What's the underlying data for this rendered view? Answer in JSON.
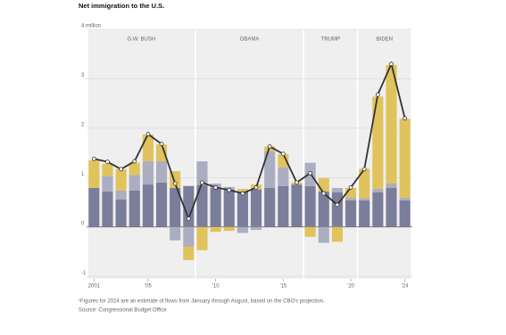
{
  "chart_data": {
    "type": "stacked-bar-line",
    "title": "Net immigration to the U.S.",
    "notes": [
      "¹Figures for 2024 are an estimate of flows from January through August, based on the CBO's projection.",
      "Source: Congressional Budget Office"
    ],
    "x": [
      2001,
      2002,
      2003,
      2004,
      2005,
      2006,
      2007,
      2008,
      2009,
      2010,
      2011,
      2012,
      2013,
      2014,
      2015,
      2016,
      2017,
      2018,
      2019,
      2020,
      2021,
      2022,
      2023,
      2024
    ],
    "xlim": [
      2000.45,
      2024.55
    ],
    "xticks": [
      {
        "value": 2001,
        "label": "2001"
      },
      {
        "value": 2005,
        "label": "'05"
      },
      {
        "value": 2010,
        "label": "'10"
      },
      {
        "value": 2015,
        "label": "'15"
      },
      {
        "value": 2020,
        "label": "'20"
      },
      {
        "value": 2024,
        "label": "'24"
      }
    ],
    "ylim": [
      -1.05,
      4
    ],
    "yticks": [
      {
        "value": 4,
        "label": "4 million"
      },
      3,
      2,
      1,
      0,
      -1
    ],
    "grid": true,
    "eras": [
      {
        "name": "G.W. BUSH",
        "start": 2001,
        "end": 2008
      },
      {
        "name": "OBAMA",
        "start": 2009,
        "end": 2016
      },
      {
        "name": "TRUMP",
        "start": 2017,
        "end": 2020
      },
      {
        "name": "BIDEN",
        "start": 2021,
        "end": 2024
      }
    ],
    "series": [
      {
        "color": "#7b7e9a",
        "values": [
          0.79,
          0.72,
          0.56,
          0.74,
          0.86,
          0.9,
          0.79,
          0.83,
          0.85,
          0.79,
          0.76,
          0.72,
          0.76,
          0.79,
          0.83,
          0.86,
          0.83,
          0.72,
          0.7,
          0.54,
          0.54,
          0.7,
          0.79,
          0.54
        ]
      },
      {
        "color": "#abadc0",
        "values": [
          0,
          0.31,
          0.18,
          0.31,
          0.47,
          0.43,
          -0.27,
          -0.4,
          0.48,
          0.09,
          0.05,
          -0.12,
          -0.06,
          0.74,
          0.38,
          0,
          0.47,
          -0.32,
          0.09,
          0.05,
          0.04,
          0.07,
          0.09,
          0.05
        ]
      },
      {
        "color": "#e0c35c",
        "values": [
          0.56,
          0.25,
          0.43,
          0.25,
          0.54,
          0.34,
          0.34,
          -0.27,
          -0.47,
          -0.1,
          -0.08,
          0.05,
          0.1,
          0.1,
          0.27,
          0.04,
          -0.2,
          0.27,
          -0.3,
          0.2,
          0.6,
          1.87,
          2.4,
          1.6
        ]
      },
      {
        "type": "line",
        "color": "#333333",
        "values": [
          1.38,
          1.32,
          1.17,
          1.33,
          1.88,
          1.68,
          0.88,
          0.17,
          0.9,
          0.8,
          0.75,
          0.68,
          0.8,
          1.63,
          1.48,
          0.9,
          1.09,
          0.68,
          0.45,
          0.8,
          1.17,
          2.68,
          3.3,
          2.2
        ]
      }
    ]
  }
}
